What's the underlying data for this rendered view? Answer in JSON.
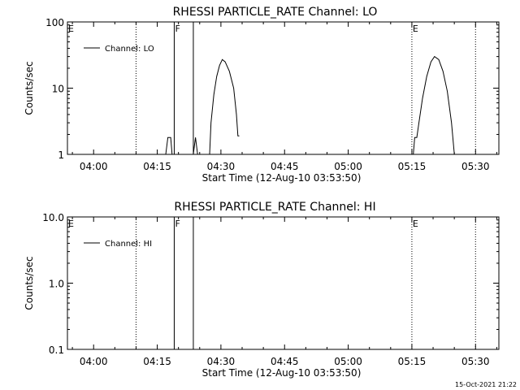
{
  "footer": {
    "date": "15-Oct-2021 21:22"
  },
  "chart_data": [
    {
      "type": "line",
      "title": "RHESSI PARTICLE_RATE Channel: LO",
      "xlabel": "Start Time (12-Aug-10 03:53:50)",
      "ylabel": "Counts/sec",
      "y_scale": "log",
      "ylim": [
        1,
        100
      ],
      "xlim_minutes": [
        "03:53:50",
        "05:35:30"
      ],
      "x_ticks": [
        "04:00",
        "04:15",
        "04:30",
        "04:45",
        "05:00",
        "05:15",
        "05:30"
      ],
      "y_ticks": [
        "1",
        "10",
        "100"
      ],
      "legend": {
        "position": "top-left",
        "entries": [
          "Channel: LO"
        ]
      },
      "markers": [
        {
          "label": "E",
          "time": "03:53:50",
          "style": "none"
        },
        {
          "label": "",
          "time": "04:10",
          "style": "dotted"
        },
        {
          "label": "F",
          "time": "04:19",
          "style": "solid"
        },
        {
          "label": "",
          "time": "04:23:30",
          "style": "solid"
        },
        {
          "label": "E",
          "time": "05:15",
          "style": "dotted"
        },
        {
          "label": "",
          "time": "05:30",
          "style": "dotted"
        }
      ],
      "series": [
        {
          "name": "Channel: LO",
          "segments": [
            [
              [
                "04:17:00",
                1
              ],
              [
                "04:17:30",
                1.8
              ],
              [
                "04:18:10",
                1.8
              ],
              [
                "04:18:30",
                1
              ]
            ],
            [
              [
                "04:23:30",
                1
              ],
              [
                "04:24:00",
                1.8
              ],
              [
                "04:24:30",
                1
              ]
            ],
            [
              [
                "04:27:20",
                1
              ],
              [
                "04:27:40",
                3
              ],
              [
                "04:28:20",
                8
              ],
              [
                "04:29:00",
                15
              ],
              [
                "04:29:40",
                22
              ],
              [
                "04:30:20",
                27
              ],
              [
                "04:31:00",
                25
              ],
              [
                "04:32:00",
                18
              ],
              [
                "04:33:00",
                10
              ],
              [
                "04:33:40",
                4
              ],
              [
                "04:34:00",
                1.9
              ],
              [
                "04:34:20",
                1.9
              ]
            ],
            [
              [
                "05:15:20",
                1
              ],
              [
                "05:15:40",
                1.8
              ],
              [
                "05:16:10",
                1.8
              ],
              [
                "05:16:40",
                3
              ],
              [
                "05:17:30",
                7
              ],
              [
                "05:18:30",
                15
              ],
              [
                "05:19:30",
                25
              ],
              [
                "05:20:20",
                30
              ],
              [
                "05:21:20",
                27
              ],
              [
                "05:22:20",
                18
              ],
              [
                "05:23:20",
                9
              ],
              [
                "05:24:20",
                3
              ],
              [
                "05:25:00",
                1
              ]
            ]
          ]
        }
      ]
    },
    {
      "type": "line",
      "title": "RHESSI PARTICLE_RATE Channel: HI",
      "xlabel": "Start Time (12-Aug-10 03:53:50)",
      "ylabel": "Counts/sec",
      "y_scale": "log",
      "ylim": [
        0.1,
        10
      ],
      "xlim_minutes": [
        "03:53:50",
        "05:35:30"
      ],
      "x_ticks": [
        "04:00",
        "04:15",
        "04:30",
        "04:45",
        "05:00",
        "05:15",
        "05:30"
      ],
      "y_ticks": [
        "0.1",
        "1.0",
        "10.0"
      ],
      "legend": {
        "position": "top-left",
        "entries": [
          "Channel: HI"
        ]
      },
      "markers": [
        {
          "label": "E",
          "time": "03:53:50",
          "style": "none"
        },
        {
          "label": "",
          "time": "04:10",
          "style": "dotted"
        },
        {
          "label": "F",
          "time": "04:19",
          "style": "solid"
        },
        {
          "label": "",
          "time": "04:23:30",
          "style": "solid"
        },
        {
          "label": "E",
          "time": "05:15",
          "style": "dotted"
        },
        {
          "label": "",
          "time": "05:30",
          "style": "dotted"
        }
      ],
      "series": [
        {
          "name": "Channel: HI",
          "segments": []
        }
      ]
    }
  ]
}
